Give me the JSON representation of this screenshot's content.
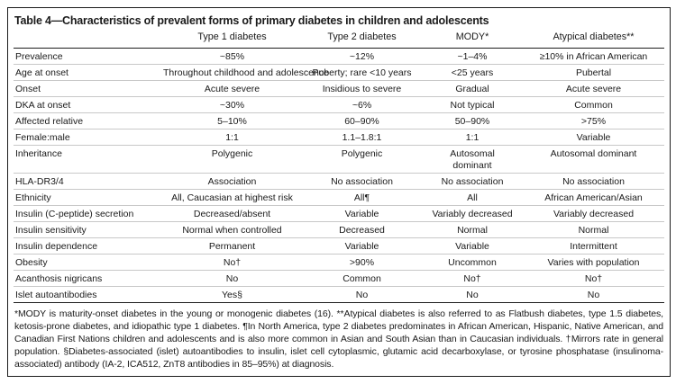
{
  "colors": {
    "border": "#1c1c1c",
    "separator": "#c8c8c8",
    "text": "#1a1a1a",
    "background": "#ffffff"
  },
  "table": {
    "title": "Table 4—Characteristics of prevalent forms of primary diabetes in children and adolescents",
    "columns": [
      "",
      "Type 1 diabetes",
      "Type 2 diabetes",
      "MODY*",
      "Atypical diabetes**"
    ],
    "rows": [
      {
        "label": "Prevalence",
        "values": [
          "~85%",
          "~12%",
          "~1–4%",
          "≥10% in African American"
        ]
      },
      {
        "label": "Age at onset",
        "values": [
          "Throughout childhood and adolescence",
          "Puberty; rare <10 years",
          "<25 years",
          "Pubertal"
        ]
      },
      {
        "label": "Onset",
        "values": [
          "Acute severe",
          "Insidious to severe",
          "Gradual",
          "Acute severe"
        ]
      },
      {
        "label": "DKA at onset",
        "values": [
          "~30%",
          "~6%",
          "Not typical",
          "Common"
        ]
      },
      {
        "label": "Affected relative",
        "values": [
          "5–10%",
          "60–90%",
          "50–90%",
          ">75%"
        ]
      },
      {
        "label": "Female:male",
        "values": [
          "1:1",
          "1.1–1.8:1",
          "1:1",
          "Variable"
        ]
      },
      {
        "label": "Inheritance",
        "values": [
          "Polygenic",
          "Polygenic",
          "Autosomal\ndominant",
          "Autosomal dominant"
        ]
      },
      {
        "label": "HLA-DR3/4",
        "values": [
          "Association",
          "No association",
          "No association",
          "No association"
        ]
      },
      {
        "label": "Ethnicity",
        "values": [
          "All, Caucasian at highest risk",
          "All¶",
          "All",
          "African American/Asian"
        ]
      },
      {
        "label": "Insulin (C-peptide) secretion",
        "values": [
          "Decreased/absent",
          "Variable",
          "Variably decreased",
          "Variably decreased"
        ]
      },
      {
        "label": "Insulin sensitivity",
        "values": [
          "Normal when controlled",
          "Decreased",
          "Normal",
          "Normal"
        ]
      },
      {
        "label": "Insulin dependence",
        "values": [
          "Permanent",
          "Variable",
          "Variable",
          "Intermittent"
        ]
      },
      {
        "label": "Obesity",
        "values": [
          "No†",
          ">90%",
          "Uncommon",
          "Varies with population"
        ]
      },
      {
        "label": "Acanthosis nigricans",
        "values": [
          "No",
          "Common",
          "No†",
          "No†"
        ]
      },
      {
        "label": "Islet autoantibodies",
        "values": [
          "Yes§",
          "No",
          "No",
          "No"
        ]
      }
    ],
    "footnote": "*MODY is maturity-onset diabetes in the young or monogenic diabetes (16). **Atypical diabetes is also referred to as Flatbush diabetes, type 1.5 diabetes, ketosis-prone diabetes, and idiopathic type 1 diabetes. ¶In North America, type 2 diabetes predominates in African American, Hispanic, Native American, and Canadian First Nations children and adolescents and is also more common in Asian and South Asian than in Caucasian individuals. †Mirrors rate in general population. §Diabetes-associated (islet) autoantibodies to insulin, islet cell cytoplasmic, glutamic acid decarboxylase, or tyrosine phosphatase (insulinoma-associated) antibody (IA-2, ICA512, ZnT8 antibodies in 85–95%) at diagnosis."
  }
}
